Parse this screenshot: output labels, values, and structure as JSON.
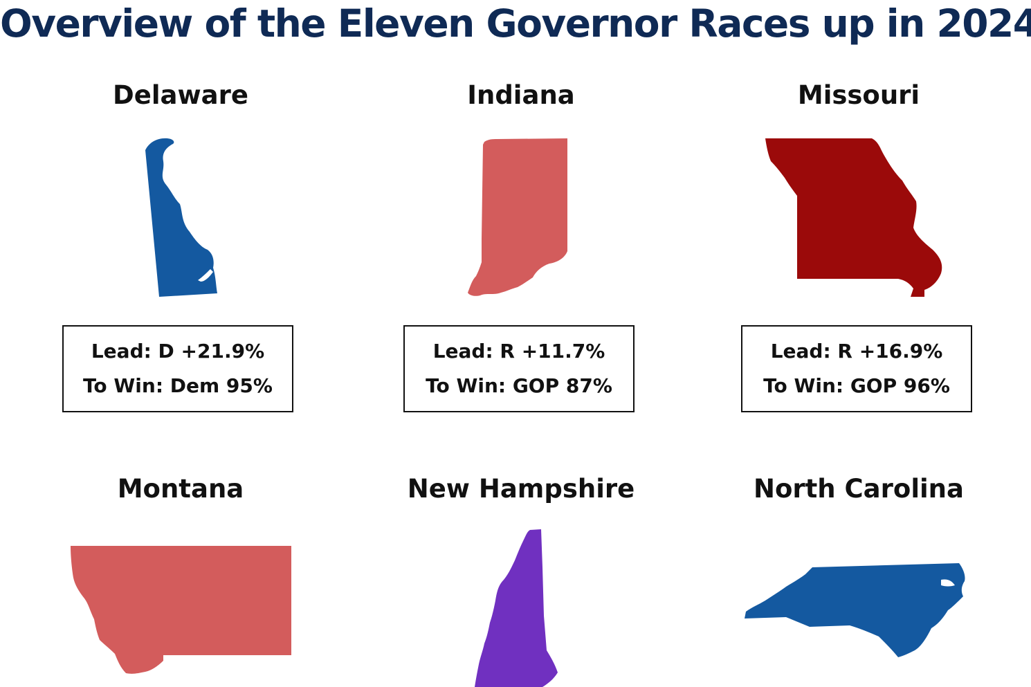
{
  "title": "Overview of the Eleven Governor Races up in 2024",
  "colors": {
    "title": "#0f2a55",
    "dem_strong": "#1459a0",
    "rep_lean": "#d35c5c",
    "rep_strong": "#9b0a0a",
    "tossup": "#7030c0"
  },
  "states": [
    {
      "name": "Delaware",
      "lead": "Lead: D +21.9%",
      "to_win": "To Win: Dem 95%",
      "color": "#1459a0"
    },
    {
      "name": "Indiana",
      "lead": "Lead: R +11.7%",
      "to_win": "To Win: GOP 87%",
      "color": "#d35c5c"
    },
    {
      "name": "Missouri",
      "lead": "Lead: R +16.9%",
      "to_win": "To Win: GOP 96%",
      "color": "#9b0a0a"
    },
    {
      "name": "Montana",
      "color": "#d35c5c"
    },
    {
      "name": "New Hampshire",
      "color": "#7030c0"
    },
    {
      "name": "North Carolina",
      "color": "#1459a0"
    }
  ]
}
